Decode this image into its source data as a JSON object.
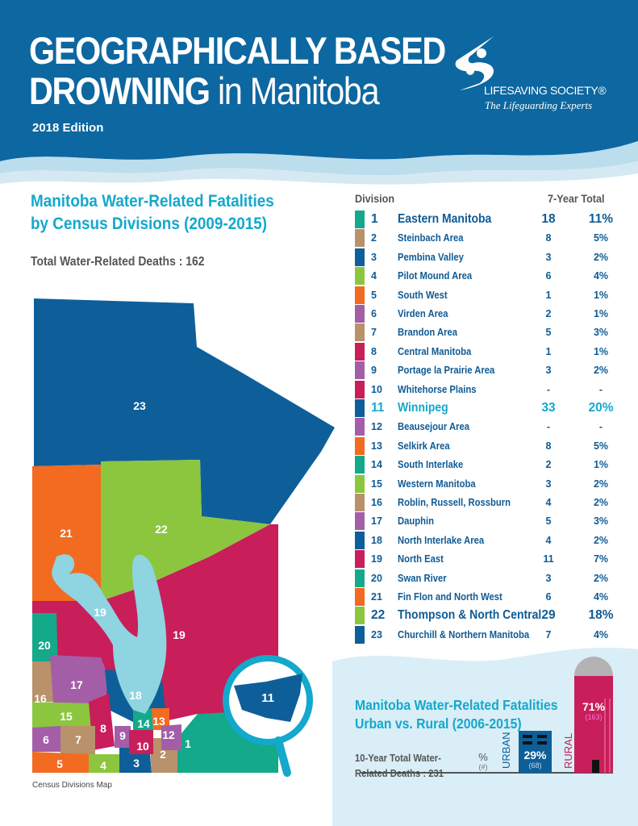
{
  "header": {
    "title_line1": "GEOGRAPHICALLY BASED",
    "title_line2_bold": "DROWNING",
    "title_line2_light": " in Manitoba",
    "edition": "2018 Edition",
    "logo_name": "LIFESAVING SOCIETY®",
    "logo_tagline": "The Lifeguarding Experts"
  },
  "colors": {
    "header_blue": "#0d67a0",
    "accent_cyan": "#14a8cc",
    "text_blue": "#0f5b95",
    "teal": "#13a98a",
    "tan": "#b9916a",
    "blue": "#0e5f99",
    "lime": "#8cc63f",
    "orange": "#f26b21",
    "purple": "#a45ea8",
    "crimson": "#c81e5a",
    "lake": "#8fd4e1"
  },
  "section": {
    "title_line1": "Manitoba Water-Related Fatalities",
    "title_line2": "by Census Divisions (2009-2015)",
    "total": "Total Water-Related Deaths : 162",
    "map_caption": "Census Divisions Map",
    "inset_label": "11"
  },
  "map_labels": [
    "23",
    "22",
    "21",
    "20",
    "19",
    "19",
    "18",
    "17",
    "16",
    "15",
    "14",
    "13",
    "12",
    "11",
    "10",
    "9",
    "8",
    "7",
    "6",
    "5",
    "4",
    "3",
    "2",
    "1"
  ],
  "table": {
    "col_division": "Division",
    "col_total": "7-Year Total",
    "rows": [
      {
        "n": "1",
        "name": "Eastern Manitoba",
        "count": "18",
        "pct": "11%",
        "color": "#13a98a"
      },
      {
        "n": "2",
        "name": "Steinbach Area",
        "count": "8",
        "pct": "5%",
        "color": "#b9916a"
      },
      {
        "n": "3",
        "name": "Pembina Valley",
        "count": "3",
        "pct": "2%",
        "color": "#0e5f99"
      },
      {
        "n": "4",
        "name": "Pilot Mound Area",
        "count": "6",
        "pct": "4%",
        "color": "#8cc63f"
      },
      {
        "n": "5",
        "name": "South West",
        "count": "1",
        "pct": "1%",
        "color": "#f26b21"
      },
      {
        "n": "6",
        "name": "Virden Area",
        "count": "2",
        "pct": "1%",
        "color": "#a45ea8"
      },
      {
        "n": "7",
        "name": "Brandon Area",
        "count": "5",
        "pct": "3%",
        "color": "#b9916a"
      },
      {
        "n": "8",
        "name": "Central Manitoba",
        "count": "1",
        "pct": "1%",
        "color": "#c81e5a"
      },
      {
        "n": "9",
        "name": "Portage la Prairie Area",
        "count": "3",
        "pct": "2%",
        "color": "#a45ea8"
      },
      {
        "n": "10",
        "name": "Whitehorse Plains",
        "count": "-",
        "pct": "-",
        "color": "#c81e5a"
      },
      {
        "n": "11",
        "name": "Winnipeg",
        "count": "33",
        "pct": "20%",
        "color": "#0e5f99"
      },
      {
        "n": "12",
        "name": "Beausejour Area",
        "count": "-",
        "pct": "-",
        "color": "#a45ea8"
      },
      {
        "n": "13",
        "name": "Selkirk Area",
        "count": "8",
        "pct": "5%",
        "color": "#f26b21"
      },
      {
        "n": "14",
        "name": "South Interlake",
        "count": "2",
        "pct": "1%",
        "color": "#13a98a"
      },
      {
        "n": "15",
        "name": "Western Manitoba",
        "count": "3",
        "pct": "2%",
        "color": "#8cc63f"
      },
      {
        "n": "16",
        "name": "Roblin, Russell, Rossburn",
        "count": "4",
        "pct": "2%",
        "color": "#b9916a"
      },
      {
        "n": "17",
        "name": "Dauphin",
        "count": "5",
        "pct": "3%",
        "color": "#a45ea8"
      },
      {
        "n": "18",
        "name": "North Interlake Area",
        "count": "4",
        "pct": "2%",
        "color": "#0e5f99"
      },
      {
        "n": "19",
        "name": "North East",
        "count": "11",
        "pct": "7%",
        "color": "#c81e5a"
      },
      {
        "n": "20",
        "name": "Swan River",
        "count": "3",
        "pct": "2%",
        "color": "#13a98a"
      },
      {
        "n": "21",
        "name": "Fin Flon and North West",
        "count": "6",
        "pct": "4%",
        "color": "#f26b21"
      },
      {
        "n": "22",
        "name": "Thompson & North Central",
        "count": "29",
        "pct": "18%",
        "color": "#8cc63f"
      },
      {
        "n": "23",
        "name": "Churchill & Northern Manitoba",
        "count": "7",
        "pct": "4%",
        "color": "#0e5f99"
      }
    ]
  },
  "urban_rural": {
    "title_line1": "Manitoba Water-Related Fatalities",
    "title_line2": "Urban vs. Rural (2006-2015)",
    "total_line1": "10-Year Total Water-",
    "total_line2": "Related Deaths : 231",
    "legend_pct": "%",
    "legend_num": "(#)",
    "urban_label": "URBAN",
    "rural_label": "RURAL",
    "urban_pct": "29%",
    "urban_num": "(68)",
    "rural_pct": "71%",
    "rural_num": "(163)",
    "urban_value": 68,
    "rural_value": 163
  }
}
